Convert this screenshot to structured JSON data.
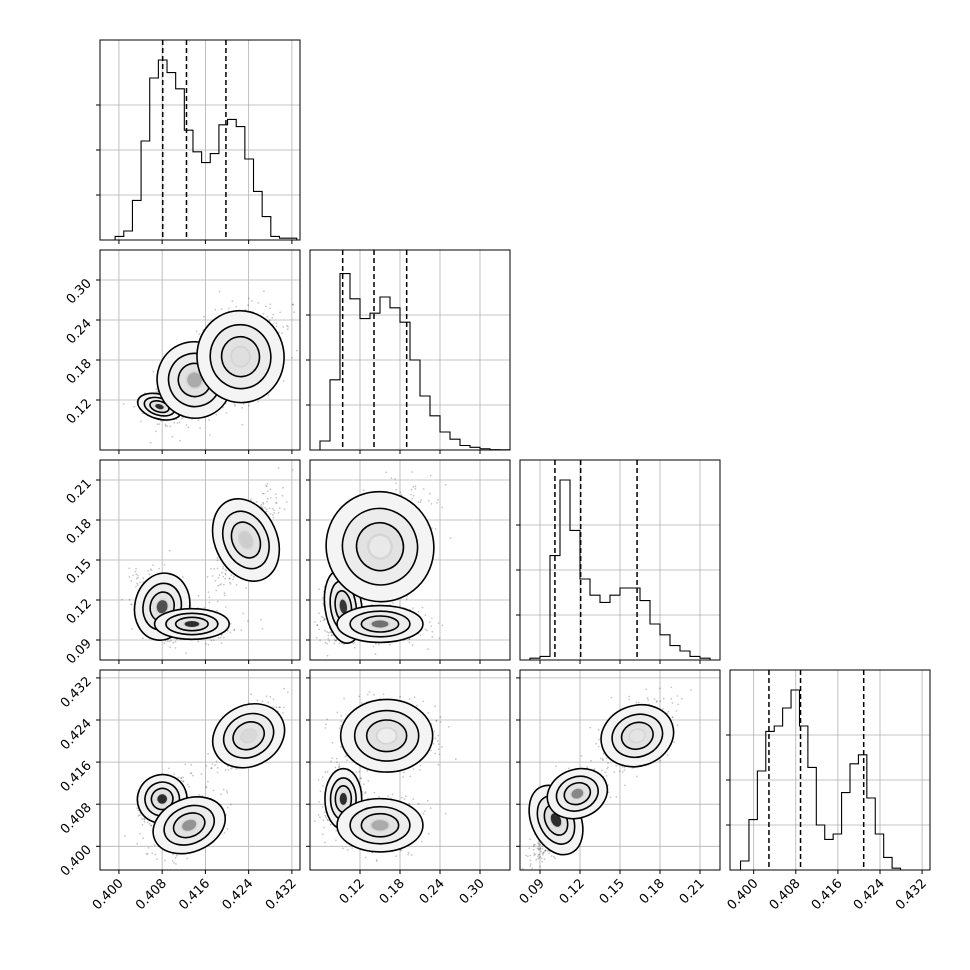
{
  "chart_data": {
    "type": "corner",
    "grid": true,
    "parameters": [
      {
        "range": [
          0.3965,
          0.4335
        ],
        "ticks": [
          0.4,
          0.408,
          0.416,
          0.424,
          0.432
        ],
        "tick_labels": [
          "0.400",
          "0.408",
          "0.416",
          "0.424",
          "0.432"
        ]
      },
      {
        "range": [
          0.045,
          0.345
        ],
        "ticks": [
          0.12,
          0.18,
          0.24,
          0.3
        ],
        "tick_labels": [
          "0.12",
          "0.18",
          "0.24",
          "0.30"
        ]
      },
      {
        "range": [
          0.075,
          0.225
        ],
        "ticks": [
          0.09,
          0.12,
          0.15,
          0.18,
          0.21
        ],
        "tick_labels": [
          "0.09",
          "0.12",
          "0.15",
          "0.18",
          "0.21"
        ]
      },
      {
        "range": [
          0.3955,
          0.4335
        ],
        "ticks": [
          0.4,
          0.408,
          0.416,
          0.424,
          0.432
        ],
        "tick_labels": [
          "0.400",
          "0.408",
          "0.416",
          "0.424",
          "0.432"
        ]
      }
    ],
    "histograms": [
      {
        "parameter": 0,
        "bin_edges": [
          0.3993,
          0.4009,
          0.4025,
          0.4041,
          0.4057,
          0.4073,
          0.4089,
          0.4105,
          0.4121,
          0.4137,
          0.4153,
          0.4169,
          0.4185,
          0.4201,
          0.4217,
          0.4233,
          0.4249,
          0.4265,
          0.4281,
          0.4297,
          0.4313,
          0.4329
        ],
        "counts": [
          0.02,
          0.05,
          0.22,
          0.55,
          0.9,
          1.0,
          0.93,
          0.84,
          0.61,
          0.49,
          0.43,
          0.48,
          0.64,
          0.67,
          0.63,
          0.45,
          0.27,
          0.13,
          0.02,
          0.01,
          0.01
        ],
        "quantiles": [
          0.4081,
          0.4125,
          0.4198
        ]
      },
      {
        "parameter": 1,
        "bin_edges": [
          0.045,
          0.06,
          0.075,
          0.09,
          0.105,
          0.12,
          0.135,
          0.15,
          0.165,
          0.18,
          0.195,
          0.21,
          0.225,
          0.24,
          0.255,
          0.27,
          0.285,
          0.3,
          0.315,
          0.33,
          0.345
        ],
        "counts": [
          0.0,
          0.05,
          0.39,
          0.98,
          0.84,
          0.73,
          0.76,
          0.85,
          0.79,
          0.71,
          0.5,
          0.3,
          0.19,
          0.1,
          0.06,
          0.025,
          0.015,
          0.007,
          0.002,
          0.001
        ],
        "quantiles": [
          0.094,
          0.141,
          0.19
        ]
      },
      {
        "parameter": 2,
        "bin_edges": [
          0.075,
          0.0825,
          0.09,
          0.0975,
          0.105,
          0.1125,
          0.12,
          0.1275,
          0.135,
          0.1425,
          0.15,
          0.1575,
          0.165,
          0.1725,
          0.18,
          0.1875,
          0.195,
          0.2025,
          0.21,
          0.2175,
          0.225
        ],
        "counts": [
          0.0,
          0.01,
          0.02,
          0.58,
          1.0,
          0.72,
          0.45,
          0.36,
          0.32,
          0.36,
          0.4,
          0.4,
          0.33,
          0.2,
          0.14,
          0.08,
          0.05,
          0.02,
          0.01,
          0.0
        ],
        "quantiles": [
          0.1012,
          0.1205,
          0.1628
        ]
      },
      {
        "parameter": 3,
        "bin_edges": [
          0.3975,
          0.3991,
          0.4007,
          0.4023,
          0.4039,
          0.4055,
          0.4071,
          0.4087,
          0.4103,
          0.4119,
          0.4135,
          0.4151,
          0.4167,
          0.4183,
          0.4199,
          0.4215,
          0.4231,
          0.4247,
          0.4263,
          0.4279,
          0.4295,
          0.4311
        ],
        "counts": [
          0.05,
          0.28,
          0.55,
          0.77,
          0.8,
          0.9,
          1.0,
          0.8,
          0.57,
          0.25,
          0.17,
          0.2,
          0.43,
          0.59,
          0.64,
          0.4,
          0.2,
          0.07,
          0.01,
          0.0,
          0.0
        ],
        "quantiles": [
          0.4029,
          0.4089,
          0.4209
        ]
      }
    ],
    "scatter_panels": [
      {
        "x": 0,
        "y": 1,
        "modes": [
          {
            "center": [
              0.4075,
              0.11
            ],
            "spread": [
              0.0018,
              0.008
            ],
            "weight": 0.2,
            "rot": -0.4,
            "core": 0.9
          },
          {
            "center": [
              0.414,
              0.15
            ],
            "spread": [
              0.003,
              0.025
            ],
            "weight": 0.35,
            "rot": 0.5,
            "core": 0.35
          },
          {
            "center": [
              0.4225,
              0.185
            ],
            "spread": [
              0.0035,
              0.03
            ],
            "weight": 0.45,
            "rot": 0.2,
            "core": 0.12
          }
        ]
      },
      {
        "x": 0,
        "y": 2,
        "modes": [
          {
            "center": [
              0.408,
              0.115
            ],
            "spread": [
              0.0022,
              0.011
            ],
            "weight": 0.3,
            "rot": -0.3,
            "core": 0.75
          },
          {
            "center": [
              0.4135,
              0.102
            ],
            "spread": [
              0.003,
              0.005
            ],
            "weight": 0.3,
            "rot": 0.0,
            "core": 0.9
          },
          {
            "center": [
              0.4235,
              0.165
            ],
            "spread": [
              0.0025,
              0.014
            ],
            "weight": 0.4,
            "rot": 0.6,
            "core": 0.2
          }
        ]
      },
      {
        "x": 1,
        "y": 2,
        "modes": [
          {
            "center": [
              0.095,
              0.115
            ],
            "spread": [
              0.012,
              0.012
            ],
            "weight": 0.3,
            "rot": 0.2,
            "core": 0.85
          },
          {
            "center": [
              0.15,
              0.102
            ],
            "spread": [
              0.028,
              0.006
            ],
            "weight": 0.3,
            "rot": 0.0,
            "core": 0.6
          },
          {
            "center": [
              0.15,
              0.16
            ],
            "spread": [
              0.035,
              0.018
            ],
            "weight": 0.4,
            "rot": 0.55,
            "core": 0.08
          }
        ]
      },
      {
        "x": 0,
        "y": 3,
        "modes": [
          {
            "center": [
              0.408,
              0.409
            ],
            "spread": [
              0.002,
              0.002
            ],
            "weight": 0.3,
            "rot": 0.55,
            "core": 0.9
          },
          {
            "center": [
              0.413,
              0.404
            ],
            "spread": [
              0.003,
              0.0022
            ],
            "weight": 0.3,
            "rot": 0.55,
            "core": 0.45
          },
          {
            "center": [
              0.424,
              0.421
            ],
            "spread": [
              0.003,
              0.0025
            ],
            "weight": 0.4,
            "rot": 0.7,
            "core": 0.15
          }
        ]
      },
      {
        "x": 1,
        "y": 3,
        "modes": [
          {
            "center": [
              0.095,
              0.409
            ],
            "spread": [
              0.012,
              0.0025
            ],
            "weight": 0.3,
            "rot": 0.0,
            "core": 0.9
          },
          {
            "center": [
              0.15,
              0.404
            ],
            "spread": [
              0.028,
              0.0022
            ],
            "weight": 0.3,
            "rot": 0.0,
            "core": 0.35
          },
          {
            "center": [
              0.16,
              0.421
            ],
            "spread": [
              0.03,
              0.003
            ],
            "weight": 0.4,
            "rot": 0.0,
            "core": 0.06
          }
        ]
      },
      {
        "x": 2,
        "y": 3,
        "modes": [
          {
            "center": [
              0.102,
              0.405
            ],
            "spread": [
              0.008,
              0.003
            ],
            "weight": 0.45,
            "rot": 0.6,
            "core": 0.9
          },
          {
            "center": [
              0.118,
              0.41
            ],
            "spread": [
              0.01,
              0.002
            ],
            "weight": 0.15,
            "rot": 0.5,
            "core": 0.5
          },
          {
            "center": [
              0.163,
              0.421
            ],
            "spread": [
              0.012,
              0.0025
            ],
            "weight": 0.4,
            "rot": 0.45,
            "core": 0.1
          }
        ]
      }
    ]
  }
}
